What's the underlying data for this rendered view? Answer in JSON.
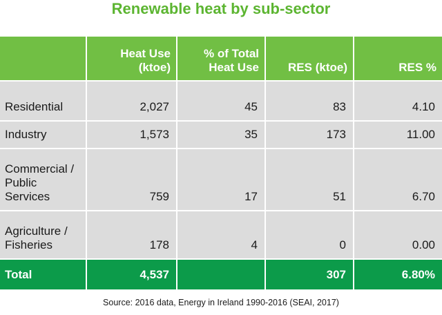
{
  "title": "Renewable heat by sub-sector",
  "chart_data": {
    "type": "table",
    "title": "Renewable heat by sub-sector",
    "columns": [
      "",
      "Heat Use\n(ktoe)",
      "% of Total\nHeat Use",
      "RES (ktoe)",
      "RES %"
    ],
    "rows": [
      [
        "Residential",
        "2,027",
        "45",
        "83",
        "4.10"
      ],
      [
        "Industry",
        "1,573",
        "35",
        "173",
        "11.00"
      ],
      [
        "Commercial /\nPublic\nServices",
        "759",
        "17",
        "51",
        "6.70"
      ],
      [
        "Agriculture /\nFisheries",
        "178",
        "4",
        "0",
        "0.00"
      ]
    ],
    "total": [
      "Total",
      "4,537",
      "",
      "307",
      "6.80%"
    ]
  },
  "source": "Source: 2016 data, Energy in Ireland 1990-2016 (SEAI, 2017)",
  "colors": {
    "title": "#5cb531",
    "header_bg": "#71bf44",
    "body_bg": "#dcdcdc",
    "total_bg": "#0c9b4a"
  }
}
